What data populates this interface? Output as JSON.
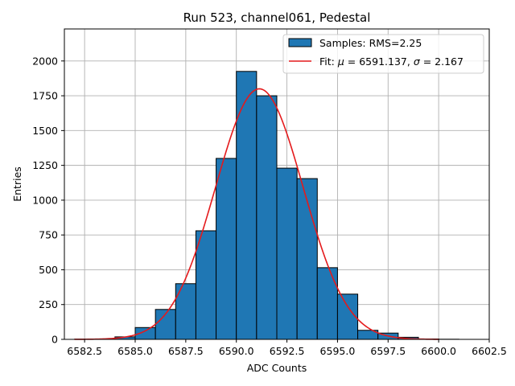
{
  "chart_data": {
    "type": "histogram",
    "title": "Run 523, channel061, Pedestal",
    "xlabel": "ADC Counts",
    "ylabel": "Entries",
    "xlim": [
      6581.5,
      6602.5
    ],
    "ylim": [
      0,
      2230
    ],
    "xticks": [
      6582.5,
      6585.0,
      6587.5,
      6590.0,
      6592.5,
      6595.0,
      6597.5,
      6600.0,
      6602.5
    ],
    "xtick_labels": [
      "6582.5",
      "6585.0",
      "6587.5",
      "6590.0",
      "6592.5",
      "6595.0",
      "6597.5",
      "6600.0",
      "6602.5"
    ],
    "yticks": [
      0,
      250,
      500,
      750,
      1000,
      1250,
      1500,
      1750,
      2000
    ],
    "ytick_labels": [
      "0",
      "250",
      "500",
      "750",
      "1000",
      "1250",
      "1500",
      "1750",
      "2000"
    ],
    "grid": true,
    "bins": {
      "edges": [
        6582,
        6583,
        6584,
        6585,
        6586,
        6587,
        6588,
        6589,
        6590,
        6591,
        6592,
        6593,
        6594,
        6595,
        6596,
        6597,
        6598,
        6599,
        6600,
        6601,
        6602
      ],
      "counts": [
        1,
        2,
        18,
        85,
        215,
        400,
        780,
        1300,
        1925,
        1750,
        1230,
        1155,
        515,
        325,
        65,
        45,
        15,
        3,
        1,
        0
      ]
    },
    "fit": {
      "mu": 6591.137,
      "sigma": 2.167,
      "amplitude": 1800,
      "x_range": [
        6582,
        6600
      ]
    },
    "colors": {
      "bar_fill": "#1f77b4",
      "bar_edge": "#000000",
      "fit_line": "#e41a1c",
      "grid": "#b0b0b0"
    },
    "legend": {
      "position": "top-right",
      "entries": [
        {
          "kind": "patch",
          "label": "Samples: RMS=2.25"
        },
        {
          "kind": "line",
          "label_prefix": "Fit: ",
          "mu_symbol": "μ",
          "mu_text": " = 6591.137, ",
          "sigma_symbol": "σ",
          "sigma_text": " = 2.167"
        }
      ]
    }
  }
}
